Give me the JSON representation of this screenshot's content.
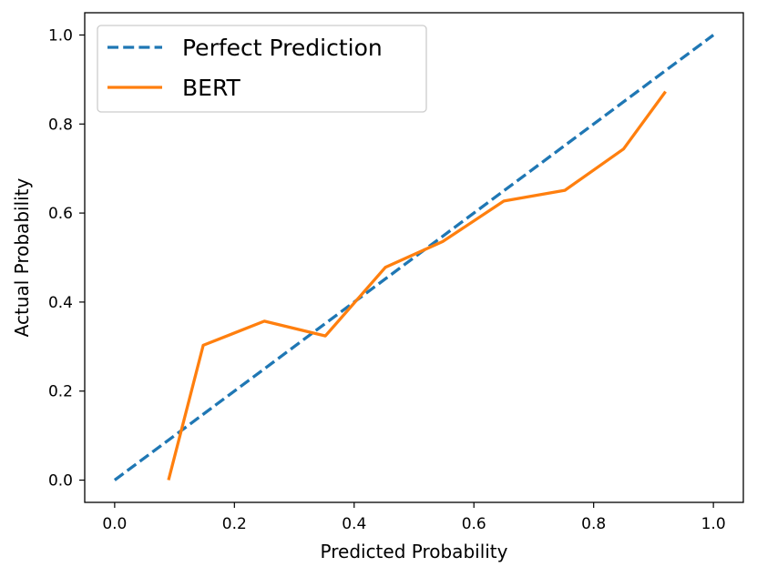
{
  "chart_data": {
    "type": "line",
    "xlabel": "Predicted Probability",
    "ylabel": "Actual Probability",
    "xlim": [
      -0.05,
      1.05
    ],
    "ylim": [
      -0.05,
      1.05
    ],
    "xticks": [
      0.0,
      0.2,
      0.4,
      0.6,
      0.8,
      1.0
    ],
    "yticks": [
      0.0,
      0.2,
      0.4,
      0.6,
      0.8,
      1.0
    ],
    "xtick_labels": [
      "0.0",
      "0.2",
      "0.4",
      "0.6",
      "0.8",
      "1.0"
    ],
    "ytick_labels": [
      "0.0",
      "0.2",
      "0.4",
      "0.6",
      "0.8",
      "1.0"
    ],
    "grid": false,
    "legend_position": "top-left",
    "series": [
      {
        "name": "Perfect Prediction",
        "style": "dashed",
        "color": "#1f77b4",
        "x": [
          0.0,
          1.0
        ],
        "y": [
          0.0,
          1.0
        ]
      },
      {
        "name": "BERT",
        "style": "solid",
        "color": "#ff7f0e",
        "x": [
          0.09,
          0.148,
          0.25,
          0.352,
          0.452,
          0.548,
          0.65,
          0.752,
          0.85,
          0.92
        ],
        "y": [
          0.0,
          0.303,
          0.357,
          0.324,
          0.478,
          0.536,
          0.627,
          0.651,
          0.744,
          0.873
        ]
      }
    ]
  }
}
